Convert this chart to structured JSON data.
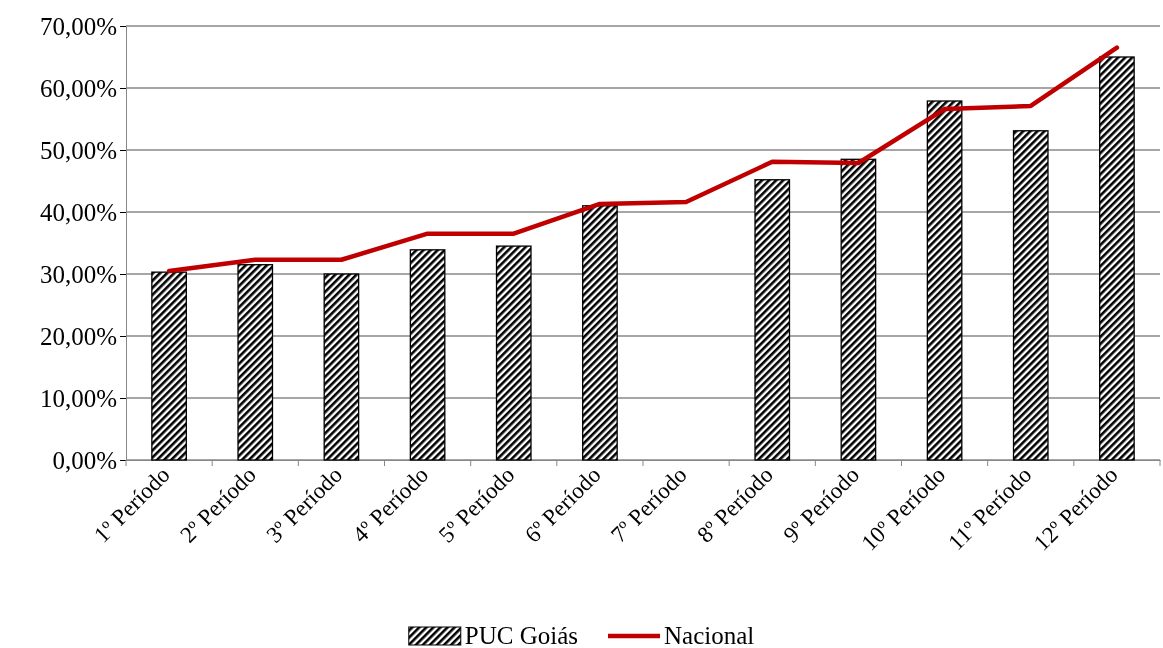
{
  "chart_data": {
    "type": "bar",
    "categories": [
      "1º Período",
      "2º Período",
      "3º Período",
      "4º Período",
      "5º Período",
      "6º Período",
      "7º Período",
      "8º Período",
      "9º Período",
      "10º Período",
      "11º Período",
      "12º Período"
    ],
    "series": [
      {
        "name": "PUC Goiás",
        "color": "#000000",
        "values": [
          30.3,
          31.5,
          30.0,
          33.9,
          34.5,
          41.0,
          null,
          45.2,
          48.5,
          57.9,
          53.1,
          65.0
        ]
      },
      {
        "name": "Nacional",
        "type": "line",
        "color": "#c00000",
        "values": [
          30.5,
          32.3,
          32.3,
          36.5,
          36.5,
          41.3,
          41.6,
          48.1,
          47.9,
          56.6,
          57.1,
          66.5
        ]
      }
    ],
    "ylim": [
      0,
      70
    ],
    "yticks": [
      {
        "value": 0,
        "label": "0,00%"
      },
      {
        "value": 10,
        "label": "10,00%"
      },
      {
        "value": 20,
        "label": "20,00%"
      },
      {
        "value": 30,
        "label": "30,00%"
      },
      {
        "value": 40,
        "label": "40,00%"
      },
      {
        "value": 50,
        "label": "50,00%"
      },
      {
        "value": 60,
        "label": "60,00%"
      },
      {
        "value": 70,
        "label": "70,00%"
      }
    ],
    "grid": "y",
    "legend": "bottom",
    "marker": "none",
    "line_style": "solid"
  }
}
